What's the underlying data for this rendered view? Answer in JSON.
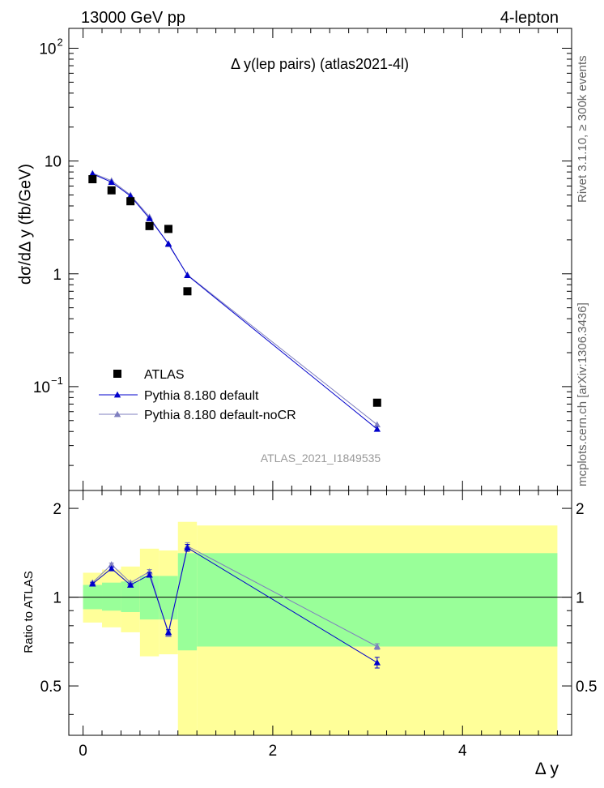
{
  "header": {
    "energy": "13000 GeV pp",
    "process": "4-lepton",
    "side_rivet": "Rivet 3.1.10, ≥ 300k events",
    "side_mcplots": "mcplots.cern.ch [arXiv:1306.3436]",
    "analysis_id": "ATLAS_2021_I1849535"
  },
  "chart_data": [
    {
      "type": "scatter",
      "title": "Δ y(lep pairs) (atlas2021-4l)",
      "ylabel": "dσ/dΔ y (fb/GeV)",
      "xlabel": "",
      "xlim": [
        -0.15,
        5.15
      ],
      "ylim": [
        0.012,
        150
      ],
      "yscale": "log",
      "yticks": [
        {
          "value": 0.1,
          "base": "10",
          "exp": "−1"
        },
        {
          "value": 1,
          "base": "1",
          "exp": ""
        },
        {
          "value": 10,
          "base": "10",
          "exp": ""
        },
        {
          "value": 100,
          "base": "10",
          "exp": "2"
        }
      ],
      "legend_position": "bottom-left",
      "series": [
        {
          "name": "ATLAS",
          "color": "#000000",
          "marker": "square",
          "x": [
            0.1,
            0.3,
            0.5,
            0.7,
            0.9,
            1.1,
            3.1
          ],
          "y": [
            6.9,
            5.5,
            4.4,
            2.65,
            2.5,
            0.7,
            0.072
          ]
        },
        {
          "name": "Pythia 8.180 default",
          "color": "#0000cc",
          "marker": "triangle",
          "x": [
            0.1,
            0.3,
            0.5,
            0.7,
            0.9,
            1.1,
            3.1
          ],
          "y": [
            7.7,
            6.5,
            4.9,
            3.1,
            1.85,
            0.97,
            0.042
          ]
        },
        {
          "name": "Pythia 8.180 default-noCR",
          "color": "#7f7fbf",
          "marker": "triangle",
          "x": [
            0.1,
            0.3,
            0.5,
            0.7,
            0.9,
            1.1,
            3.1
          ],
          "y": [
            7.8,
            6.7,
            5.0,
            3.2,
            1.82,
            0.98,
            0.046
          ]
        }
      ]
    },
    {
      "type": "scatter",
      "title": "",
      "ylabel": "Ratio to ATLAS",
      "xlabel": "Δ y",
      "xlim": [
        -0.15,
        5.15
      ],
      "ylim": [
        0.34,
        2.3
      ],
      "yscale": "log",
      "yticks": [
        0.5,
        1,
        2
      ],
      "xticks": [
        0,
        2,
        4
      ],
      "bands": [
        {
          "x0": 0.0,
          "x1": 0.2,
          "inner": [
            0.91,
            1.1
          ],
          "outer": [
            0.82,
            1.21
          ]
        },
        {
          "x0": 0.2,
          "x1": 0.4,
          "inner": [
            0.9,
            1.12
          ],
          "outer": [
            0.79,
            1.24
          ]
        },
        {
          "x0": 0.4,
          "x1": 0.6,
          "inner": [
            0.89,
            1.13
          ],
          "outer": [
            0.76,
            1.27
          ]
        },
        {
          "x0": 0.6,
          "x1": 0.8,
          "inner": [
            0.84,
            1.18
          ],
          "outer": [
            0.63,
            1.46
          ]
        },
        {
          "x0": 0.8,
          "x1": 1.0,
          "inner": [
            0.84,
            1.18
          ],
          "outer": [
            0.64,
            1.44
          ]
        },
        {
          "x0": 1.0,
          "x1": 1.2,
          "inner": [
            0.66,
            1.41
          ],
          "outer": [
            0.34,
            1.8
          ]
        },
        {
          "x0": 1.2,
          "x1": 5.0,
          "inner": [
            0.68,
            1.41
          ],
          "outer": [
            0.34,
            1.75
          ]
        }
      ],
      "series": [
        {
          "name": "Pythia 8.180 default",
          "color": "#0000cc",
          "x": [
            0.1,
            0.3,
            0.5,
            0.7,
            0.9,
            1.1,
            3.1
          ],
          "y": [
            1.11,
            1.25,
            1.1,
            1.19,
            0.76,
            1.47,
            0.6
          ],
          "err": [
            0.01,
            0.015,
            0.01,
            0.02,
            0.015,
            0.04,
            0.025
          ]
        },
        {
          "name": "Pythia 8.180 default-noCR",
          "color": "#7f7fbf",
          "x": [
            0.1,
            0.3,
            0.5,
            0.7,
            0.9,
            1.1,
            3.1
          ],
          "y": [
            1.12,
            1.29,
            1.12,
            1.22,
            0.75,
            1.49,
            0.68
          ],
          "err": [
            0.01,
            0.015,
            0.01,
            0.02,
            0.015,
            0.04,
            0.015
          ]
        }
      ]
    }
  ]
}
